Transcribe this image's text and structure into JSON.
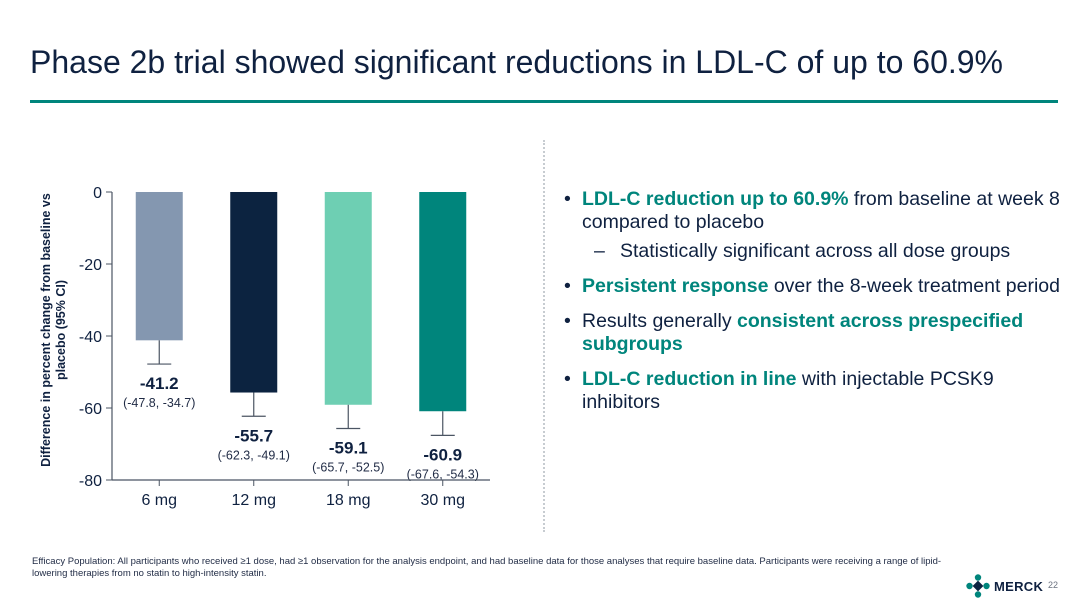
{
  "slide": {
    "title": "Phase 2b trial showed significant reductions in LDL-C of up to 60.9%",
    "footnote": "Efficacy Population:  All participants who received ≥1 dose, had ≥1 observation for the analysis endpoint, and had baseline data for those analyses that require baseline data. Participants were receiving a range of lipid-lowering therapies from no statin to high-intensity statin.",
    "logo_text": "MERCK",
    "page_number": "22",
    "accent_color": "#00857c",
    "text_color": "#0f2140"
  },
  "bullets": [
    {
      "highlight": "LDL-C reduction up to 60.9%",
      "text": " from baseline at week 8 compared to placebo",
      "sub": "Statistically significant across all dose groups"
    },
    {
      "highlight": "Persistent response",
      "text": " over the 8-week treatment period"
    },
    {
      "prefix": "Results generally ",
      "highlight": "consistent across prespecified subgroups"
    },
    {
      "highlight": "LDL-C reduction in line",
      "text": " with injectable PCSK9 inhibitors"
    }
  ],
  "chart_data": {
    "type": "bar",
    "categories": [
      "6 mg",
      "12 mg",
      "18 mg",
      "30 mg"
    ],
    "values": [
      -41.2,
      -55.7,
      -59.1,
      -60.9
    ],
    "ci_low": [
      -47.8,
      -62.3,
      -65.7,
      -67.6
    ],
    "ci_high": [
      -34.7,
      -49.1,
      -52.5,
      -54.3
    ],
    "value_labels": [
      "-41.2",
      "-55.7",
      "-59.1",
      "-60.9"
    ],
    "ci_labels": [
      "(-47.8, -34.7)",
      "(-62.3, -49.1)",
      "(-65.7, -52.5)",
      "(-67.6, -54.3)"
    ],
    "colors": [
      "#8497b0",
      "#0c2340",
      "#6ecfb3",
      "#00857c"
    ],
    "ylabel": "Difference in percent change from baseline vs placebo (95% CI)",
    "yticks": [
      0,
      -20,
      -40,
      -60,
      -80
    ],
    "ylim": [
      -80,
      0
    ],
    "error_bars": "lower whisker only",
    "grid": false
  }
}
